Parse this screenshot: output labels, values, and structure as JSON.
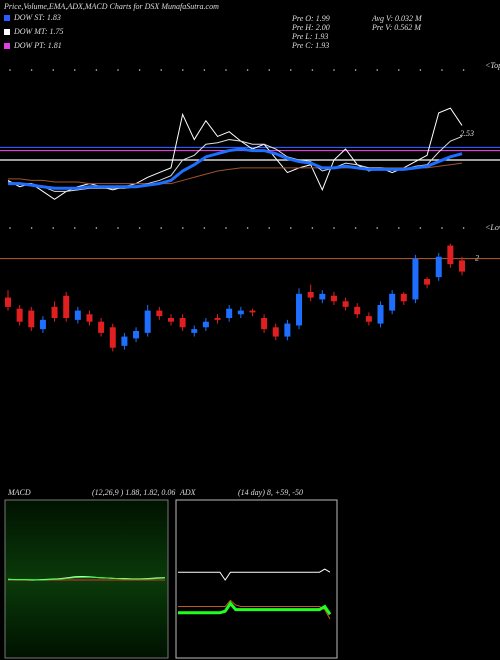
{
  "chart_data": [
    {
      "type": "line",
      "title": "Price,Volume,EMA,ADX,MACD Charts for DSX  MunafaSutra.com",
      "dow": [
        {
          "label": "DOW ST: 1.83",
          "value": 1.83,
          "color": "#2a5cff"
        },
        {
          "label": "DOW MT: 1.75",
          "value": 1.75,
          "color": "#ffffff"
        },
        {
          "label": "DOW PT: 1.81",
          "value": 1.81,
          "color": "#e040e0"
        }
      ],
      "info": [
        "Pre   O: 1.99",
        "Pre   H: 2.00",
        "Pre   L: 1.93",
        "Pre   C: 1.93",
        "Avg V: 0.032  M",
        "Pre   V: 0.562  M"
      ],
      "annotations": [
        "<Tops",
        "<Lows",
        "2.53"
      ],
      "ylim": [
        1.4,
        2.1
      ],
      "series": [
        {
          "color": "#ffffff",
          "line_width": 1,
          "values": [
            1.62,
            1.58,
            1.6,
            1.55,
            1.5,
            1.55,
            1.58,
            1.6,
            1.58,
            1.56,
            1.58,
            1.6,
            1.64,
            1.67,
            1.7,
            2.04,
            1.88,
            2.0,
            1.9,
            1.93,
            1.87,
            1.82,
            1.85,
            1.76,
            1.67,
            1.7,
            1.72,
            1.56,
            1.75,
            1.82,
            1.72,
            1.68,
            1.7,
            1.67,
            1.7,
            1.74,
            1.78,
            2.05,
            2.08,
            1.97
          ]
        },
        {
          "color": "#a0522d",
          "line_width": 1,
          "values": [
            1.63,
            1.63,
            1.62,
            1.62,
            1.61,
            1.61,
            1.61,
            1.6,
            1.6,
            1.6,
            1.6,
            1.6,
            1.6,
            1.6,
            1.6,
            1.62,
            1.64,
            1.66,
            1.68,
            1.69,
            1.7,
            1.7,
            1.7,
            1.7,
            1.7,
            1.7,
            1.7,
            1.7,
            1.7,
            1.7,
            1.7,
            1.7,
            1.7,
            1.7,
            1.7,
            1.7,
            1.7,
            1.71,
            1.72,
            1.73
          ]
        },
        {
          "color": "#dddddd",
          "line_width": 1,
          "values": [
            1.61,
            1.6,
            1.6,
            1.58,
            1.55,
            1.55,
            1.56,
            1.57,
            1.57,
            1.57,
            1.57,
            1.58,
            1.6,
            1.62,
            1.65,
            1.75,
            1.78,
            1.85,
            1.86,
            1.88,
            1.87,
            1.85,
            1.85,
            1.82,
            1.77,
            1.75,
            1.74,
            1.68,
            1.7,
            1.73,
            1.72,
            1.7,
            1.7,
            1.69,
            1.69,
            1.71,
            1.72,
            1.8,
            1.87,
            1.9
          ]
        },
        {
          "color": "#1e6fff",
          "line_width": 3,
          "values": [
            1.6,
            1.6,
            1.59,
            1.58,
            1.57,
            1.57,
            1.57,
            1.58,
            1.58,
            1.58,
            1.58,
            1.58,
            1.59,
            1.6,
            1.62,
            1.68,
            1.72,
            1.77,
            1.79,
            1.81,
            1.82,
            1.81,
            1.81,
            1.79,
            1.76,
            1.74,
            1.73,
            1.7,
            1.7,
            1.71,
            1.7,
            1.69,
            1.69,
            1.69,
            1.69,
            1.7,
            1.71,
            1.74,
            1.77,
            1.79
          ]
        }
      ]
    },
    {
      "type": "candlestick",
      "ylim": [
        1.4,
        2.1
      ],
      "level": 2,
      "level_color": "#b8602a",
      "up_color": "#1e6fff",
      "down_color": "#e02020",
      "open": [
        1.79,
        1.73,
        1.72,
        1.62,
        1.74,
        1.8,
        1.67,
        1.7,
        1.66,
        1.63,
        1.53,
        1.57,
        1.6,
        1.72,
        1.68,
        1.68,
        1.6,
        1.63,
        1.68,
        1.68,
        1.7,
        1.72,
        1.68,
        1.63,
        1.58,
        1.64,
        1.82,
        1.78,
        1.8,
        1.77,
        1.74,
        1.69,
        1.65,
        1.72,
        1.81,
        1.78,
        1.89,
        1.9,
        2.07,
        1.99
      ],
      "high": [
        1.83,
        1.75,
        1.74,
        1.69,
        1.77,
        1.82,
        1.74,
        1.72,
        1.68,
        1.65,
        1.6,
        1.63,
        1.75,
        1.74,
        1.7,
        1.7,
        1.64,
        1.68,
        1.7,
        1.75,
        1.74,
        1.73,
        1.7,
        1.65,
        1.67,
        1.84,
        1.86,
        1.83,
        1.82,
        1.79,
        1.76,
        1.71,
        1.77,
        1.83,
        1.82,
        2.02,
        1.9,
        2.03,
        2.08,
        2.01
      ],
      "low": [
        1.72,
        1.64,
        1.61,
        1.6,
        1.66,
        1.66,
        1.65,
        1.64,
        1.58,
        1.5,
        1.51,
        1.55,
        1.58,
        1.67,
        1.64,
        1.61,
        1.58,
        1.61,
        1.65,
        1.66,
        1.68,
        1.69,
        1.6,
        1.56,
        1.56,
        1.62,
        1.77,
        1.76,
        1.75,
        1.72,
        1.68,
        1.64,
        1.63,
        1.7,
        1.75,
        1.76,
        1.84,
        1.88,
        1.95,
        1.91
      ],
      "close": [
        1.74,
        1.66,
        1.63,
        1.67,
        1.68,
        1.68,
        1.72,
        1.66,
        1.6,
        1.52,
        1.58,
        1.61,
        1.72,
        1.69,
        1.66,
        1.63,
        1.62,
        1.66,
        1.67,
        1.73,
        1.72,
        1.71,
        1.62,
        1.58,
        1.65,
        1.81,
        1.79,
        1.81,
        1.77,
        1.74,
        1.7,
        1.66,
        1.75,
        1.81,
        1.77,
        2.0,
        1.86,
        2.01,
        1.97,
        1.93
      ]
    },
    {
      "type": "line",
      "title": "MACD",
      "subtitle": "(12,26,9 ) 1.88, 1.82, 0.06",
      "ylim": [
        -2,
        2
      ],
      "series": [
        {
          "color": "#e03030",
          "line_width": 1,
          "values": [
            0,
            0,
            0,
            0,
            0,
            0,
            0,
            0,
            0,
            0,
            0,
            0,
            0,
            0,
            0,
            0,
            0,
            0,
            0,
            0
          ]
        },
        {
          "color": "#ffffff",
          "line_width": 1,
          "values": [
            0.02,
            0.01,
            0.01,
            0,
            0.01,
            0.02,
            0.03,
            0.05,
            0.08,
            0.09,
            0.08,
            0.06,
            0.05,
            0.04,
            0.04,
            0.03,
            0.03,
            0.04,
            0.05,
            0.06
          ]
        },
        {
          "color": "#30ff30",
          "line_width": 1,
          "values": [
            0.01,
            0.01,
            0.01,
            0.01,
            0,
            0.01,
            0.02,
            0.04,
            0.06,
            0.07,
            0.07,
            0.06,
            0.05,
            0.04,
            0.03,
            0.03,
            0.03,
            0.03,
            0.04,
            0.05
          ]
        }
      ]
    },
    {
      "type": "line",
      "title": "ADX",
      "subtitle": "(14  day) 8, +59, -50",
      "ylim": [
        0,
        100
      ],
      "series": [
        {
          "color": "#ffffff",
          "line_width": 1,
          "values": [
            55,
            55,
            55,
            55,
            55,
            55,
            55,
            55,
            55,
            50,
            55,
            55,
            55,
            55,
            55,
            55,
            55,
            55,
            55,
            55,
            55,
            55,
            55,
            55,
            55,
            55,
            55,
            55,
            57,
            55
          ]
        },
        {
          "color": "#c05a1a",
          "line_width": 1,
          "values": [
            33,
            33,
            33,
            33,
            33,
            33,
            33,
            33,
            33,
            33,
            37,
            34,
            33,
            33,
            33,
            33,
            33,
            33,
            33,
            33,
            33,
            33,
            33,
            33,
            33,
            33,
            33,
            33,
            31,
            25
          ]
        },
        {
          "color": "#20ff20",
          "line_width": 3,
          "values": [
            29,
            29,
            29,
            29,
            29,
            29,
            29,
            29,
            29,
            30,
            35,
            31,
            31,
            31,
            31,
            31,
            31,
            31,
            31,
            31,
            31,
            31,
            31,
            31,
            31,
            31,
            31,
            31,
            33,
            28
          ]
        }
      ]
    }
  ]
}
